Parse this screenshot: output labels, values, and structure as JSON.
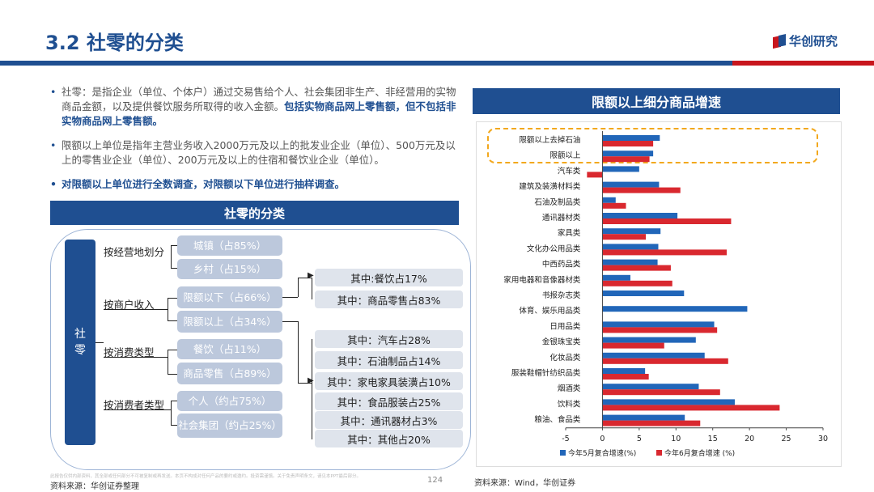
{
  "header": {
    "title": "3.2 社零的分类",
    "brand": "华创研究"
  },
  "bullets": [
    {
      "text": "社零：是指企业（单位、个体户）通过交易售给个人、社会集团非生产、非经营用的实物商品金额，以及提供餐饮服务所取得的收入金额。",
      "highlight": "包括实物商品网上零售额，但不包括非实物商品网上零售额。"
    },
    {
      "text": "限额以上单位是指年主营业务收入2000万元及以上的批发业企业（单位）、500万元及以上的零售业企业（单位）、200万元及以上的住宿和餐饮业企业（单位）。",
      "highlight": ""
    },
    {
      "text": "对限额以上单位进行全数调查，对限额以下单位进行抽样调查。",
      "highlight": ""
    }
  ],
  "classification": {
    "banner": "社零的分类",
    "root": "社\n零",
    "categories": [
      "按经营地划分",
      "按商户收入",
      "按消费类型",
      "按消费者类型"
    ],
    "boxes": [
      "城镇（占85%）",
      "乡村（占15%）",
      "限额以下（占66%）",
      "限额以上（占34%）",
      "餐饮（占11%）",
      "商品零售（占89%）",
      "个人（约占75%）",
      "社会集团（约占25%）"
    ],
    "sub_items": [
      "其中:餐饮占17%",
      "其中：商品零售占83%",
      "其中：汽车占28%",
      "其中：石油制品占14%",
      "其中：家电家具装潢占10%",
      "其中：食品服装占25%",
      "其中：通讯器材占3%",
      "其中：其他占20%"
    ]
  },
  "footer": {
    "source_left": "资料来源：华创证券整理",
    "source_right": "资料来源：Wind，华创证券",
    "page_number": "124",
    "disclaimer": "此报告仅供内部资料，其全部或任何部分不可被复制或再发送。本页不构成对任何产品的要约或邀约。投资需谨慎。关于免责声明条文，请见本PPT最后部分。"
  },
  "colors": {
    "primary": "#1f4f91",
    "accent_red": "#c8161d",
    "may_series": "#2166b9",
    "june_series": "#d9282f",
    "highlight_border": "#f2a81d"
  },
  "chart_data": {
    "type": "bar",
    "orientation": "horizontal",
    "title": "限额以上细分商品增速",
    "categories": [
      "限额以上去掉石油",
      "限额以上",
      "汽车类",
      "建筑及装潢材料类",
      "石油及制品类",
      "通讯器材类",
      "家具类",
      "文化办公用品类",
      "中西药品类",
      "家用电器和音像器材类",
      "书报杂志类",
      "体育、娱乐用品类",
      "日用品类",
      "金银珠宝类",
      "化妆品类",
      "服装鞋帽针纺织品类",
      "烟酒类",
      "饮料类",
      "粮油、食品类"
    ],
    "series": [
      {
        "name": "今年5月复合增速(%)",
        "values": [
          7.8,
          6.9,
          5.0,
          7.7,
          1.8,
          10.2,
          7.9,
          7.6,
          7.5,
          3.8,
          11.1,
          19.7,
          15.2,
          12.7,
          13.9,
          5.8,
          13.1,
          18.0,
          11.2
        ]
      },
      {
        "name": "今年6月复合增速 (%)",
        "values": [
          6.9,
          6.4,
          -2.1,
          10.6,
          3.2,
          17.5,
          5.9,
          16.9,
          9.3,
          9.5,
          null,
          null,
          15.6,
          8.4,
          17.1,
          6.3,
          16.0,
          24.1,
          13.3
        ]
      }
    ],
    "xlim": [
      -5,
      30
    ],
    "xticks": [
      -5,
      0,
      5,
      10,
      15,
      20,
      25,
      30
    ],
    "xtick_labels": [
      "-5",
      "0",
      "5",
      "10",
      "15",
      "20",
      "25",
      "30"
    ],
    "legend_position": "bottom",
    "grid": false
  }
}
